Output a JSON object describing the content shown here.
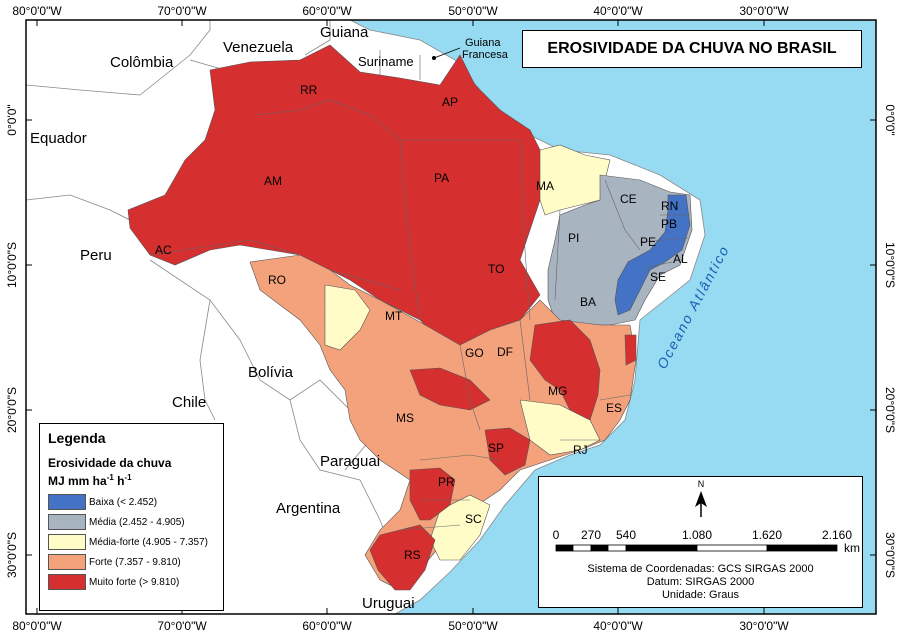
{
  "title": "EROSIVIDADE DA CHUVA NO BRASIL",
  "colors": {
    "ocean": "#97dbf2",
    "land": "#ffffff",
    "baixa": "#4472c4",
    "media": "#a9b4c1",
    "media_forte": "#fffcc8",
    "forte": "#f3a27c",
    "muito_forte": "#d62f2f"
  },
  "ticks": {
    "top": [
      "80°0'0\"W",
      "70°0'0\"W",
      "60°0'0\"W",
      "50°0'0\"W",
      "40°0'0\"W",
      "30°0'0\"W"
    ],
    "bottom": [
      "80°0'0\"W",
      "70°0'0\"W",
      "60°0'0\"W",
      "50°0'0\"W",
      "40°0'0\"W",
      "30°0'0\"W"
    ],
    "left": [
      "0°0'0\"",
      "10°0'0\"S",
      "20°0'0\"S",
      "30°0'0\"S"
    ],
    "right": [
      "0°0'0\"",
      "10°0'0\"S",
      "20°0'0\"S",
      "30°0'0\"S"
    ]
  },
  "countries": {
    "colombia": "Colômbia",
    "venezuela": "Venezuela",
    "guiana": "Guiana",
    "suriname": "Suriname",
    "guiana_francesa_1": "Guiana",
    "guiana_francesa_2": "Francesa",
    "equador": "Equador",
    "peru": "Peru",
    "bolivia": "Bolívia",
    "chile": "Chile",
    "paraguai": "Paraguai",
    "argentina": "Argentina",
    "uruguai": "Uruguai"
  },
  "ocean_label": "Oceano Atlântico",
  "states": [
    "RR",
    "AP",
    "AM",
    "PA",
    "MA",
    "CE",
    "RN",
    "PB",
    "PI",
    "PE",
    "AL",
    "SE",
    "AC",
    "TO",
    "RO",
    "BA",
    "MT",
    "GO",
    "DF",
    "MG",
    "ES",
    "MS",
    "SP",
    "RJ",
    "PR",
    "SC",
    "RS"
  ],
  "legend": {
    "title": "Legenda",
    "subtitle": "Erosividade da chuva",
    "unit": "MJ mm ha-1 h-1",
    "unit_parts": [
      "MJ mm ha",
      "-1",
      " h",
      "-1"
    ],
    "items": [
      {
        "label": "Baixa (< 2.452)",
        "color": "#4472c4"
      },
      {
        "label": "Média (2.452 - 4.905)",
        "color": "#a9b4c1"
      },
      {
        "label": "Média-forte (4.905 - 7.357)",
        "color": "#fffcc8"
      },
      {
        "label": "Forte (7.357 - 9.810)",
        "color": "#f3a27c"
      },
      {
        "label": "Muito forte (> 9.810)",
        "color": "#d62f2f"
      }
    ]
  },
  "north_arrow": "N",
  "scale": {
    "labels": [
      "0",
      "270",
      "540",
      "1.080",
      "1.620",
      "2.160"
    ],
    "unit": "km"
  },
  "info": {
    "coord_system": "Sistema de Coordenadas: GCS SIRGAS 2000",
    "datum": "Datum: SIRGAS 2000",
    "unit": "Unidade: Graus"
  }
}
